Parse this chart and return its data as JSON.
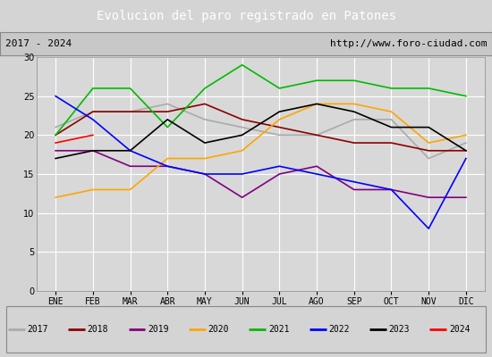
{
  "title": "Evolucion del paro registrado en Patones",
  "subtitle_left": "2017 - 2024",
  "subtitle_right": "http://www.foro-ciudad.com",
  "months": [
    "ENE",
    "FEB",
    "MAR",
    "ABR",
    "MAY",
    "JUN",
    "JUL",
    "AGO",
    "SEP",
    "OCT",
    "NOV",
    "DIC"
  ],
  "series": {
    "2017": {
      "color": "#aaaaaa",
      "data": [
        21,
        23,
        23,
        24,
        22,
        21,
        20,
        20,
        22,
        22,
        17,
        19
      ]
    },
    "2018": {
      "color": "#8b0000",
      "data": [
        20,
        23,
        23,
        23,
        24,
        22,
        21,
        20,
        19,
        19,
        18,
        18
      ]
    },
    "2019": {
      "color": "#800080",
      "data": [
        18,
        18,
        16,
        16,
        15,
        12,
        15,
        16,
        13,
        13,
        12,
        12
      ]
    },
    "2020": {
      "color": "#ffa500",
      "data": [
        12,
        13,
        13,
        17,
        17,
        18,
        22,
        24,
        24,
        23,
        19,
        20
      ]
    },
    "2021": {
      "color": "#00bb00",
      "data": [
        20,
        26,
        26,
        21,
        26,
        29,
        26,
        27,
        27,
        26,
        26,
        25
      ]
    },
    "2022": {
      "color": "#0000ff",
      "data": [
        25,
        22,
        18,
        16,
        15,
        15,
        16,
        15,
        14,
        13,
        8,
        17
      ]
    },
    "2023": {
      "color": "#000000",
      "data": [
        17,
        18,
        18,
        22,
        19,
        20,
        23,
        24,
        23,
        21,
        21,
        18
      ]
    },
    "2024": {
      "color": "#ff0000",
      "data": [
        19,
        20,
        null,
        null,
        null,
        null,
        null,
        null,
        null,
        null,
        null,
        null
      ]
    }
  },
  "ylim": [
    0,
    30
  ],
  "yticks": [
    0,
    5,
    10,
    15,
    20,
    25,
    30
  ],
  "bg_color": "#d4d4d4",
  "plot_bg_color": "#d8d8d8",
  "title_bg_color": "#4a6fa5",
  "title_text_color": "#ffffff",
  "header_bg_color": "#c8c8c8",
  "legend_bg_color": "#e8e8e8",
  "grid_color": "#ffffff"
}
